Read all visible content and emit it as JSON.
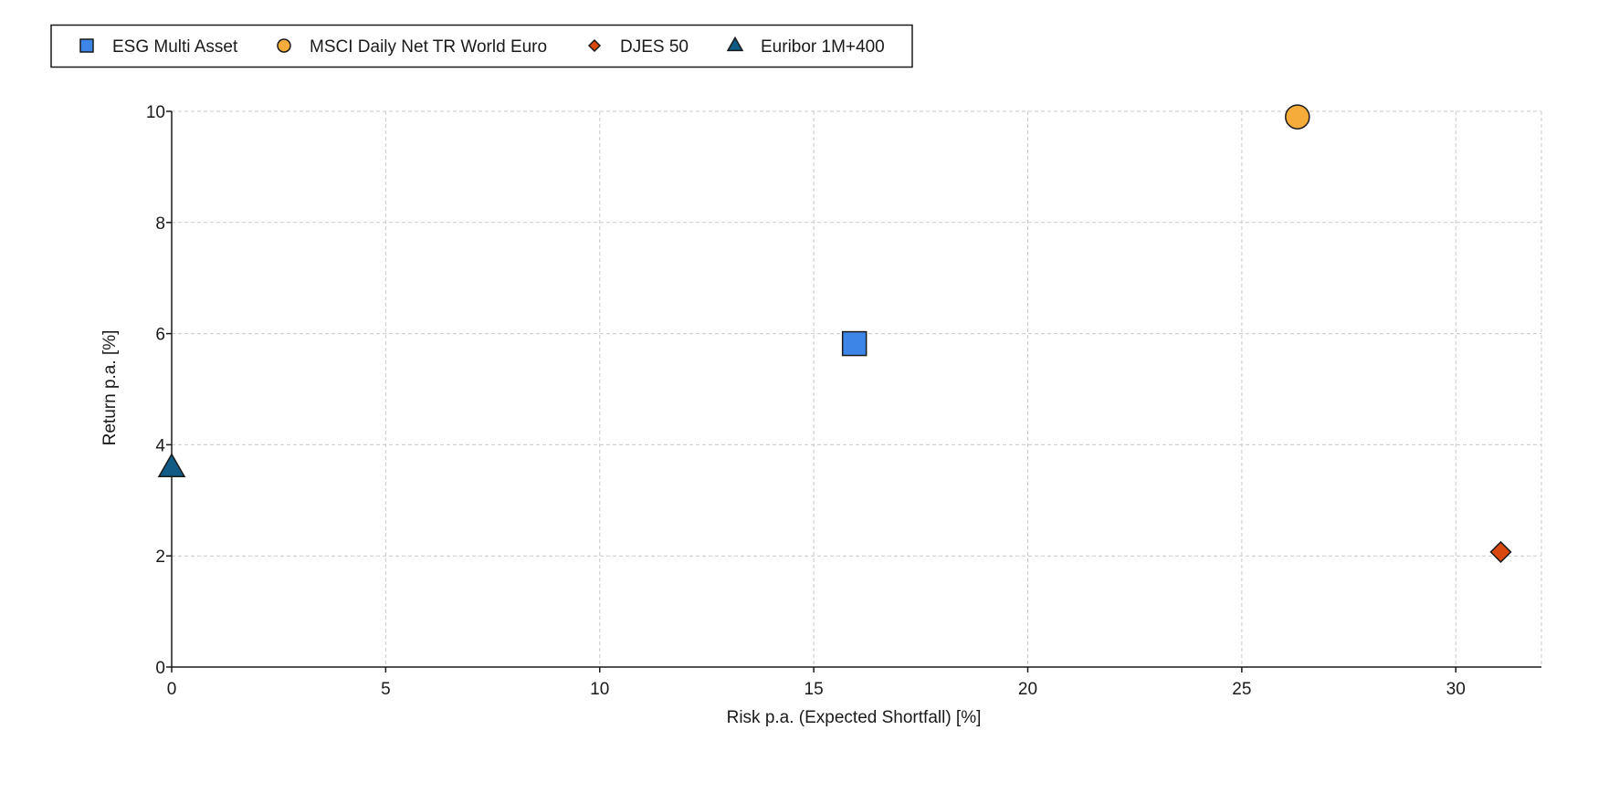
{
  "chart_data": {
    "type": "scatter",
    "title": "",
    "xlabel": "Risk p.a. (Expected Shortfall) [%]",
    "ylabel": "Return p.a. [%]",
    "xlim": [
      0,
      32
    ],
    "ylim": [
      0,
      10
    ],
    "xticks": [
      0,
      5,
      10,
      15,
      20,
      25,
      30
    ],
    "yticks": [
      0,
      2,
      4,
      6,
      8,
      10
    ],
    "xtick_labels": [
      "0",
      "5",
      "10",
      "15",
      "20",
      "25",
      "30"
    ],
    "ytick_labels": [
      "0",
      "2",
      "4",
      "6",
      "8",
      "10"
    ],
    "grid": true,
    "legend_position": "top-left",
    "series": [
      {
        "name": "ESG Multi Asset",
        "marker": "square",
        "color": "#3d85e6",
        "x": [
          15.95
        ],
        "y": [
          5.82
        ]
      },
      {
        "name": "MSCI Daily Net TR World Euro",
        "marker": "circle",
        "color": "#f5ac3b",
        "x": [
          26.3
        ],
        "y": [
          9.9
        ]
      },
      {
        "name": "DJES 50",
        "marker": "diamond",
        "color": "#d9480f",
        "x": [
          31.05
        ],
        "y": [
          2.07
        ]
      },
      {
        "name": "Euribor 1M+400",
        "marker": "triangle",
        "color": "#0f5b85",
        "x": [
          0.0
        ],
        "y": [
          3.58
        ]
      }
    ]
  }
}
